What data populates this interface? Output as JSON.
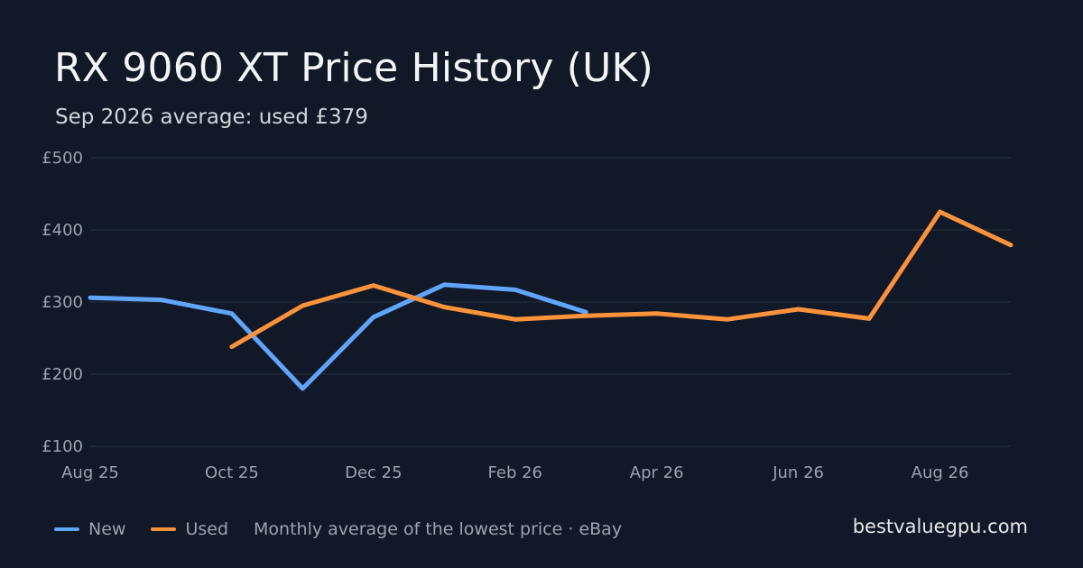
{
  "header": {
    "title": "RX 9060 XT Price History (UK)",
    "subtitle": "Sep 2026 average: used £379"
  },
  "legend": {
    "note": "Monthly average of the lowest price · eBay"
  },
  "brand": "bestvaluegpu.com",
  "colors": {
    "background": "#111827",
    "grid": "#1f2937",
    "axis_text": "#9ca3af",
    "new": "#60a5fa",
    "used": "#fb923c"
  },
  "chart_data": {
    "type": "line",
    "x": [
      "Aug 25",
      "Sep 25",
      "Oct 25",
      "Nov 25",
      "Dec 25",
      "Jan 26",
      "Feb 26",
      "Mar 26",
      "Apr 26",
      "May 26",
      "Jun 26",
      "Jul 26",
      "Aug 26",
      "Sep 26"
    ],
    "x_tick_labels": [
      "Aug 25",
      "Oct 25",
      "Dec 25",
      "Feb 26",
      "Apr 26",
      "Jun 26",
      "Aug 26"
    ],
    "y_tick_labels": [
      "£100",
      "£200",
      "£300",
      "£400",
      "£500"
    ],
    "y_ticks": [
      100,
      200,
      300,
      400,
      500
    ],
    "ylim": [
      100,
      500
    ],
    "grid": true,
    "legend_placement": "bottom-left",
    "series": [
      {
        "name": "New",
        "color": "#60a5fa",
        "values": [
          306,
          303,
          284,
          180,
          279,
          324,
          317,
          286,
          null,
          null,
          null,
          null,
          null,
          null
        ]
      },
      {
        "name": "Used",
        "color": "#fb923c",
        "values": [
          null,
          null,
          238,
          295,
          323,
          293,
          276,
          281,
          284,
          276,
          290,
          277,
          425,
          379
        ]
      }
    ]
  }
}
